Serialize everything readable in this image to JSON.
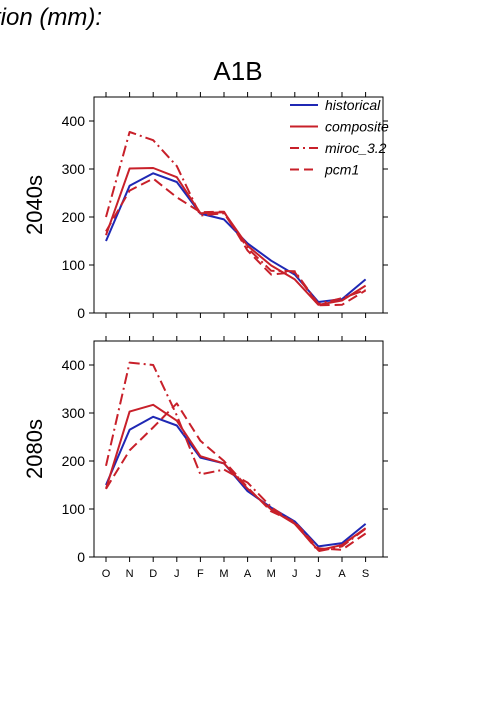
{
  "heading": "tion (mm):",
  "scenario": "A1B",
  "colors": {
    "historical": "#1f28b4",
    "composite": "#c8202a",
    "miroc_3.2": "#c8202a",
    "pcm1": "#c8202a"
  },
  "chart_data": [
    {
      "type": "line",
      "title": "",
      "ylabel": "2040s",
      "xlabel": "",
      "categories": [
        "O",
        "N",
        "D",
        "J",
        "F",
        "M",
        "A",
        "M",
        "J",
        "J",
        "A",
        "S"
      ],
      "ylim": [
        0,
        450
      ],
      "yticks": [
        0,
        100,
        200,
        300,
        400
      ],
      "grid": false,
      "legend": "top-right",
      "series": [
        {
          "name": "historical",
          "style": "solid",
          "values": [
            150,
            265,
            291,
            273,
            207,
            195,
            145,
            109,
            80,
            23,
            29,
            70
          ]
        },
        {
          "name": "composite",
          "style": "solid",
          "values": [
            162,
            301,
            302,
            283,
            208,
            210,
            140,
            99,
            70,
            17,
            26,
            57
          ]
        },
        {
          "name": "miroc_3.2",
          "style": "dashdot",
          "values": [
            200,
            377,
            360,
            306,
            203,
            208,
            135,
            88,
            87,
            19,
            31,
            48
          ]
        },
        {
          "name": "pcm1",
          "style": "dashed",
          "values": [
            170,
            255,
            280,
            241,
            210,
            211,
            130,
            80,
            85,
            16,
            17,
            47
          ]
        }
      ]
    },
    {
      "type": "line",
      "title": "",
      "ylabel": "2080s",
      "xlabel": "",
      "categories": [
        "O",
        "N",
        "D",
        "J",
        "F",
        "M",
        "A",
        "M",
        "J",
        "J",
        "A",
        "S"
      ],
      "ylim": [
        0,
        450
      ],
      "yticks": [
        0,
        100,
        200,
        300,
        400
      ],
      "grid": false,
      "legend": "none",
      "series": [
        {
          "name": "historical",
          "style": "solid",
          "values": [
            150,
            265,
            292,
            274,
            207,
            195,
            137,
            103,
            74,
            22,
            29,
            69
          ]
        },
        {
          "name": "composite",
          "style": "solid",
          "values": [
            142,
            303,
            317,
            284,
            210,
            195,
            142,
            99,
            69,
            14,
            25,
            60
          ]
        },
        {
          "name": "miroc_3.2",
          "style": "dashdot",
          "values": [
            190,
            405,
            400,
            295,
            172,
            182,
            155,
            104,
            70,
            12,
            22,
            59
          ]
        },
        {
          "name": "pcm1",
          "style": "dashed",
          "values": [
            142,
            222,
            270,
            320,
            242,
            200,
            145,
            95,
            73,
            18,
            15,
            49
          ]
        }
      ]
    }
  ]
}
